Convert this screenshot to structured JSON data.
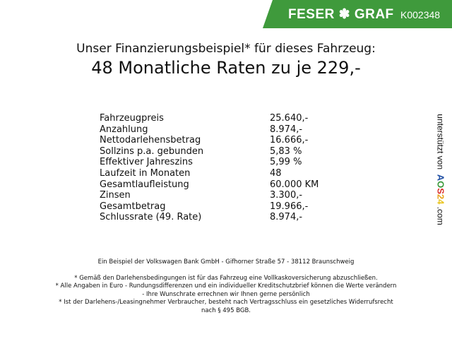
{
  "header": {
    "brand": "FESER ✽ GRAF",
    "code": "K002348",
    "color": "#3f9a3c"
  },
  "title": {
    "line1": "Unser Finanzierungsbeispiel* für dieses Fahrzeug:",
    "line2": "48 Monatliche Raten zu je 229,-"
  },
  "rows": [
    {
      "label": "Fahrzeugpreis",
      "value": "25.640,-"
    },
    {
      "label": "Anzahlung",
      "value": "8.974,-"
    },
    {
      "label": "Nettodarlehensbetrag",
      "value": "16.666,-"
    },
    {
      "label": "Sollzins p.a. gebunden",
      "value": "5,83 %"
    },
    {
      "label": "Effektiver Jahreszins",
      "value": "5,99 %"
    },
    {
      "label": "Laufzeit in Monaten",
      "value": "48"
    },
    {
      "label": "Gesamtlaufleistung",
      "value": "60.000 KM"
    },
    {
      "label": "Zinsen",
      "value": "3.300,-"
    },
    {
      "label": "Gesamtbetrag",
      "value": "19.966,-"
    },
    {
      "label": "Schlussrate (49. Rate)",
      "value": "8.974,-"
    }
  ],
  "side": {
    "prefix": "unterstützt von",
    "logo": [
      "A",
      "O",
      "S",
      "2",
      "4"
    ],
    "suffix": ".com"
  },
  "footer": {
    "bank": "Ein Beispiel der Volkswagen Bank GmbH - Gifhorner Straße 57 - 38112 Braunschweig",
    "note1": "* Gemäß den Darlehensbedingungen ist für das Fahrzeug eine Vollkaskoversicherung abzuschließen.",
    "note2a": "* Alle Angaben in Euro - Rundungsdifferenzen und ein individueller Kreditschutzbrief können die Werte verändern",
    "note2b": "- Ihre Wunschrate errechnen wir Ihnen gerne persönlich",
    "note3a": "* Ist der Darlehens-/Leasingnehmer Verbraucher, besteht nach Vertragsschluss ein gesetzliches Widerrufsrecht",
    "note3b": "nach § 495 BGB."
  }
}
